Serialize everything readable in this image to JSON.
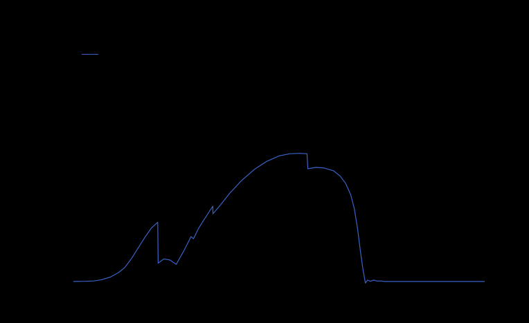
{
  "chart_data": {
    "type": "line",
    "title": "",
    "xlabel": "",
    "ylabel": "",
    "grid": false,
    "legend": {
      "placement": "top-left",
      "entries": [
        {
          "name": ""
        }
      ]
    },
    "colors": {
      "background": "#000000",
      "series": "#3a62c9"
    },
    "xlim": [
      0,
      100
    ],
    "ylim": [
      0,
      100
    ],
    "series": [
      {
        "name": "",
        "points": [
          [
            0,
            0
          ],
          [
            3,
            0.1
          ],
          [
            5,
            0.3
          ],
          [
            7,
            1.0
          ],
          [
            9,
            2.3
          ],
          [
            11,
            4.6
          ],
          [
            12.5,
            7.2
          ],
          [
            14.2,
            12
          ],
          [
            16,
            18
          ],
          [
            17.5,
            23
          ],
          [
            19,
            27.5
          ],
          [
            20.5,
            30.4
          ],
          [
            20.6,
            9.4
          ],
          [
            22,
            11.6
          ],
          [
            23.5,
            11.0
          ],
          [
            25,
            8.8
          ],
          [
            27,
            16.3
          ],
          [
            28.6,
            23
          ],
          [
            29.2,
            21.9
          ],
          [
            30.5,
            27.5
          ],
          [
            32,
            32.5
          ],
          [
            33.9,
            38.6
          ],
          [
            33.92,
            34.7
          ],
          [
            35.5,
            38.6
          ],
          [
            38,
            45.2
          ],
          [
            41,
            52
          ],
          [
            44,
            57.5
          ],
          [
            47,
            61.6
          ],
          [
            50,
            64.4
          ],
          [
            52.6,
            65.5
          ],
          [
            55,
            65.7
          ],
          [
            56.8,
            65.5
          ],
          [
            57.0,
            57.8
          ],
          [
            59,
            58.5
          ],
          [
            61,
            58.2
          ],
          [
            63.3,
            56.7
          ],
          [
            64.8,
            54.2
          ],
          [
            66.2,
            50.3
          ],
          [
            67.4,
            44.6
          ],
          [
            68.3,
            37.4
          ],
          [
            69.1,
            26.9
          ],
          [
            69.8,
            15.3
          ],
          [
            70.4,
            6.2
          ],
          [
            71.0,
            -0.8
          ],
          [
            71.5,
            0.7
          ],
          [
            72.2,
            0.1
          ],
          [
            73.0,
            0.7
          ],
          [
            73.9,
            0.2
          ],
          [
            74.8,
            0.3
          ],
          [
            75.6,
            0
          ],
          [
            77.5,
            0
          ],
          [
            85,
            0
          ],
          [
            92,
            0
          ],
          [
            100,
            0
          ]
        ]
      }
    ]
  }
}
